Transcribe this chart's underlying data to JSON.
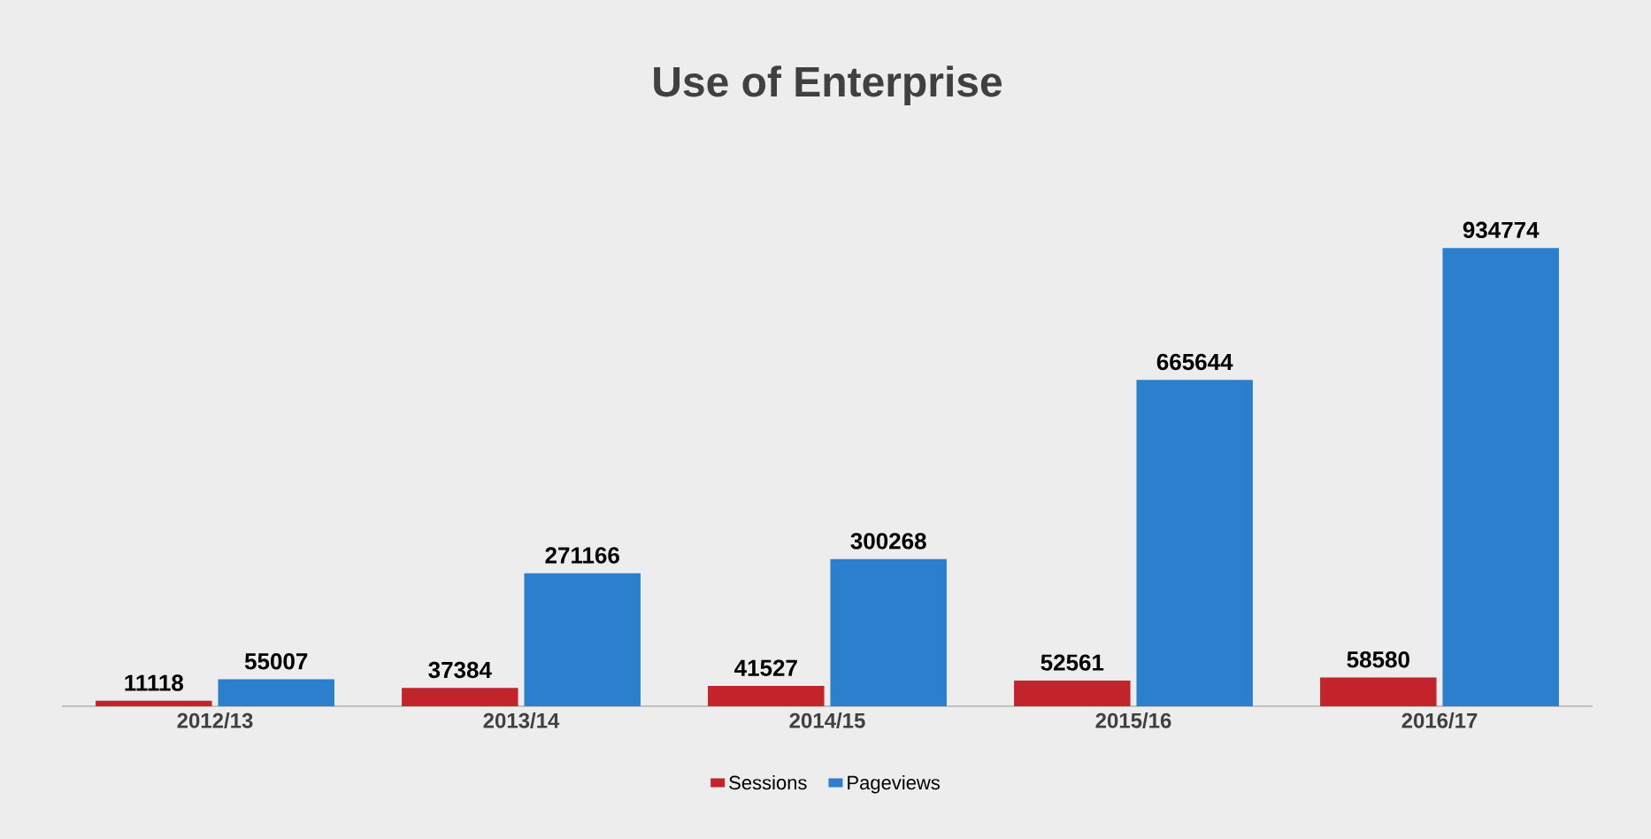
{
  "chart_data": {
    "type": "bar",
    "title": "Use of Enterprise",
    "categories": [
      "2012/13",
      "2013/14",
      "2014/15",
      "2015/16",
      "2016/17"
    ],
    "series": [
      {
        "name": "Sessions",
        "color": "#c3232b",
        "values": [
          11118,
          37384,
          41527,
          52561,
          58580
        ]
      },
      {
        "name": "Pageviews",
        "color": "#2b7fcd",
        "values": [
          55007,
          271166,
          300268,
          665644,
          934774
        ]
      }
    ],
    "data_labels": true,
    "legend": "bottom"
  }
}
